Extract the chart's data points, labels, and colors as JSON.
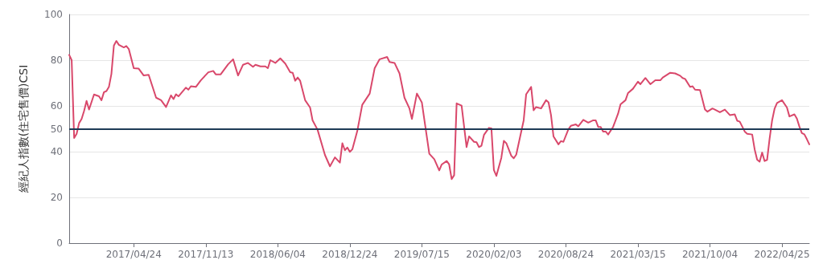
{
  "chart_data": {
    "type": "line",
    "ylabel": "經紀人指數(住宅售價)CSI",
    "x": [
      "2016-10-24",
      "2016-10-31",
      "2016-11-07",
      "2016-11-14",
      "2016-11-21",
      "2016-11-28",
      "2016-12-05",
      "2016-12-12",
      "2016-12-19",
      "2017-01-02",
      "2017-01-16",
      "2017-01-23",
      "2017-01-30",
      "2017-02-06",
      "2017-02-13",
      "2017-02-20",
      "2017-02-27",
      "2017-03-06",
      "2017-03-13",
      "2017-03-27",
      "2017-04-03",
      "2017-04-10",
      "2017-04-24",
      "2017-05-08",
      "2017-05-22",
      "2017-06-05",
      "2017-06-26",
      "2017-07-10",
      "2017-07-24",
      "2017-08-07",
      "2017-08-14",
      "2017-08-21",
      "2017-08-28",
      "2017-09-18",
      "2017-09-25",
      "2017-10-02",
      "2017-10-16",
      "2017-10-30",
      "2017-11-20",
      "2017-12-04",
      "2017-12-11",
      "2017-12-25",
      "2018-01-15",
      "2018-01-29",
      "2018-02-12",
      "2018-02-26",
      "2018-03-12",
      "2018-03-26",
      "2018-04-02",
      "2018-04-16",
      "2018-04-30",
      "2018-05-07",
      "2018-05-14",
      "2018-05-28",
      "2018-06-11",
      "2018-06-25",
      "2018-07-09",
      "2018-07-16",
      "2018-07-23",
      "2018-07-30",
      "2018-08-06",
      "2018-08-20",
      "2018-09-03",
      "2018-09-10",
      "2018-09-24",
      "2018-10-15",
      "2018-10-29",
      "2018-11-12",
      "2018-11-26",
      "2018-12-03",
      "2018-12-10",
      "2018-12-17",
      "2018-12-24",
      "2018-12-31",
      "2019-01-14",
      "2019-01-28",
      "2019-02-18",
      "2019-03-04",
      "2019-03-18",
      "2019-04-08",
      "2019-04-15",
      "2019-04-29",
      "2019-05-13",
      "2019-05-27",
      "2019-06-10",
      "2019-06-17",
      "2019-07-01",
      "2019-07-15",
      "2019-07-22",
      "2019-08-05",
      "2019-08-19",
      "2019-09-02",
      "2019-09-09",
      "2019-09-23",
      "2019-09-30",
      "2019-10-07",
      "2019-10-14",
      "2019-10-21",
      "2019-11-04",
      "2019-11-18",
      "2019-11-25",
      "2019-12-09",
      "2019-12-16",
      "2019-12-23",
      "2019-12-30",
      "2020-01-06",
      "2020-01-20",
      "2020-01-27",
      "2020-02-03",
      "2020-02-10",
      "2020-02-24",
      "2020-03-02",
      "2020-03-09",
      "2020-03-23",
      "2020-03-30",
      "2020-04-06",
      "2020-04-27",
      "2020-05-04",
      "2020-05-18",
      "2020-05-25",
      "2020-06-01",
      "2020-06-15",
      "2020-06-29",
      "2020-07-06",
      "2020-07-13",
      "2020-07-20",
      "2020-08-03",
      "2020-08-10",
      "2020-08-17",
      "2020-08-31",
      "2020-09-07",
      "2020-09-21",
      "2020-09-28",
      "2020-10-12",
      "2020-10-26",
      "2020-11-09",
      "2020-11-16",
      "2020-11-23",
      "2020-11-30",
      "2020-12-07",
      "2020-12-14",
      "2020-12-21",
      "2021-01-04",
      "2021-01-18",
      "2021-01-25",
      "2021-02-08",
      "2021-02-15",
      "2021-03-01",
      "2021-03-15",
      "2021-03-22",
      "2021-04-05",
      "2021-04-19",
      "2021-05-03",
      "2021-05-17",
      "2021-05-24",
      "2021-06-14",
      "2021-06-28",
      "2021-07-12",
      "2021-07-19",
      "2021-07-26",
      "2021-08-09",
      "2021-08-16",
      "2021-08-23",
      "2021-09-06",
      "2021-09-20",
      "2021-09-27",
      "2021-10-11",
      "2021-10-18",
      "2021-11-01",
      "2021-11-15",
      "2021-11-29",
      "2021-12-13",
      "2021-12-20",
      "2021-12-27",
      "2022-01-10",
      "2022-01-17",
      "2022-01-31",
      "2022-02-07",
      "2022-02-14",
      "2022-02-21",
      "2022-02-28",
      "2022-03-07",
      "2022-03-14",
      "2022-03-21",
      "2022-03-28",
      "2022-04-04",
      "2022-04-11",
      "2022-04-25",
      "2022-05-09",
      "2022-05-16",
      "2022-05-30",
      "2022-06-06",
      "2022-06-13",
      "2022-06-20",
      "2022-06-27",
      "2022-07-04",
      "2022-07-11"
    ],
    "series": [
      {
        "color": "#d9486b",
        "values": [
          82.3,
          80,
          46,
          47.8,
          52.5,
          54.3,
          57.8,
          62.2,
          58.4,
          65,
          64.2,
          62.5,
          66,
          66.5,
          68.3,
          74,
          86.4,
          88.4,
          86.7,
          85.6,
          86.2,
          84.9,
          76.5,
          76.3,
          73.3,
          73.6,
          63.6,
          62.5,
          59.5,
          64.6,
          63,
          65.1,
          64.2,
          68,
          67.1,
          68.6,
          68.3,
          71.2,
          74.7,
          75.3,
          73.8,
          73.8,
          78.2,
          80.4,
          73.3,
          78,
          78.8,
          77.1,
          78,
          77.3,
          77.3,
          76.5,
          80,
          78.8,
          80.8,
          78.5,
          74.7,
          74.5,
          71,
          72.4,
          71,
          62.5,
          59.3,
          53.7,
          49.6,
          38.5,
          33.6,
          37.5,
          35.2,
          43.7,
          40.6,
          41.8,
          39.9,
          41,
          49,
          60.5,
          65.4,
          76.5,
          80.4,
          81.4,
          79.2,
          78.8,
          74.2,
          63.6,
          58.9,
          54.3,
          65.4,
          61.5,
          54,
          39.1,
          36.7,
          31.8,
          34.4,
          35.9,
          34.4,
          28,
          29.7,
          61.1,
          60.1,
          42,
          46.7,
          44.3,
          44.1,
          42,
          42.6,
          47.3,
          50.4,
          50.2,
          32,
          29.4,
          37.3,
          44.7,
          43.7,
          38.2,
          37.1,
          38.7,
          53.7,
          65.1,
          68.3,
          58.1,
          59.5,
          58.9,
          62.5,
          61.6,
          56,
          46.7,
          43.2,
          44.6,
          44.3,
          49.8,
          51.3,
          51.9,
          51.1,
          53.9,
          52.7,
          53.7,
          53.7,
          50.8,
          50.8,
          48.8,
          48.8,
          47.5,
          50.8,
          56.6,
          60.7,
          62.5,
          65.6,
          67.5,
          70.6,
          69.5,
          72.2,
          69.5,
          71.2,
          71.2,
          72.4,
          74.5,
          74.2,
          73.2,
          72.2,
          71.8,
          68.3,
          68.6,
          67.1,
          66.9,
          58.4,
          57.5,
          58.9,
          58.4,
          57.2,
          58.4,
          56,
          56.3,
          53.5,
          53.1,
          48.8,
          47.8,
          47.5,
          41,
          36.5,
          35.6,
          39.6,
          35.9,
          36.4,
          45.6,
          53.5,
          58.7,
          61.3,
          62.5,
          59.3,
          55.4,
          56.3,
          54.5,
          51,
          48.1,
          47.6,
          45.5,
          43.2
        ]
      }
    ],
    "xlim": [
      "2016-10-24",
      "2022-07-11"
    ],
    "xticks": [
      {
        "value": "2017-04-24",
        "label": "2017/04/24"
      },
      {
        "value": "2017-11-13",
        "label": "2017/11/13"
      },
      {
        "value": "2018-06-04",
        "label": "2018/06/04"
      },
      {
        "value": "2018-12-24",
        "label": "2018/12/24"
      },
      {
        "value": "2019-07-15",
        "label": "2019/07/15"
      },
      {
        "value": "2020-02-03",
        "label": "2020/02/03"
      },
      {
        "value": "2020-08-24",
        "label": "2020/08/24"
      },
      {
        "value": "2021-03-15",
        "label": "2021/03/15"
      },
      {
        "value": "2021-10-04",
        "label": "2021/10/04"
      },
      {
        "value": "2022-04-25",
        "label": "2022/04/25"
      }
    ],
    "ylim": [
      0,
      100
    ],
    "yticks": [
      0,
      20,
      40,
      60,
      80,
      100
    ],
    "ref_lines": [
      {
        "axis": "y",
        "value": 50,
        "label": "50",
        "color": "#1d3a56",
        "line_style": "solid"
      }
    ],
    "grid": "y",
    "marker": "none",
    "line_style": "solid"
  }
}
